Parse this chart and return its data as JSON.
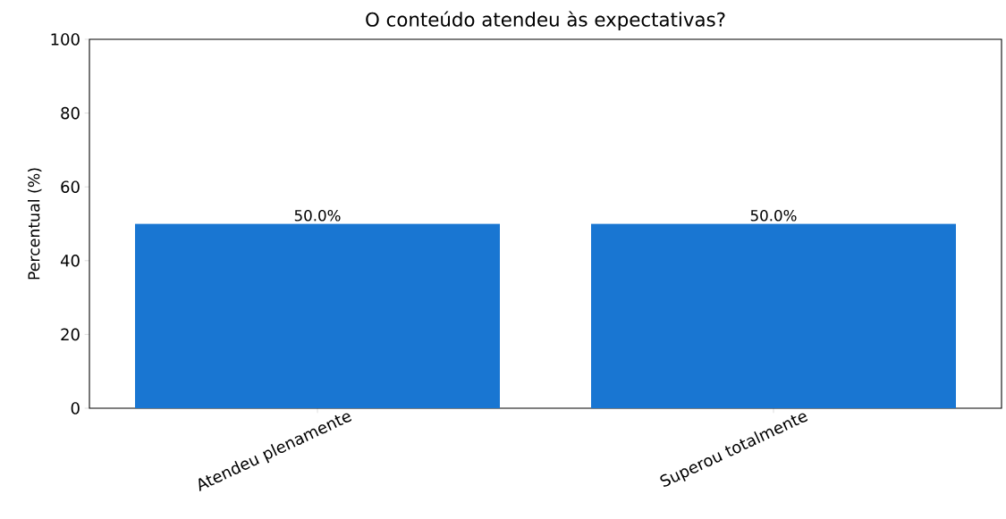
{
  "chart_data": {
    "type": "bar",
    "title": "O conteúdo atendeu às expectativas?",
    "ylabel": "Percentual (%)",
    "categories": [
      "Atendeu plenamente",
      "Superou totalmente"
    ],
    "values": [
      50,
      50
    ],
    "value_labels": [
      "50.0%",
      "50.0%"
    ],
    "color": "#1976d2",
    "ylim": [
      0,
      100
    ],
    "yticks": [
      0,
      20,
      40,
      60,
      80,
      100
    ]
  }
}
